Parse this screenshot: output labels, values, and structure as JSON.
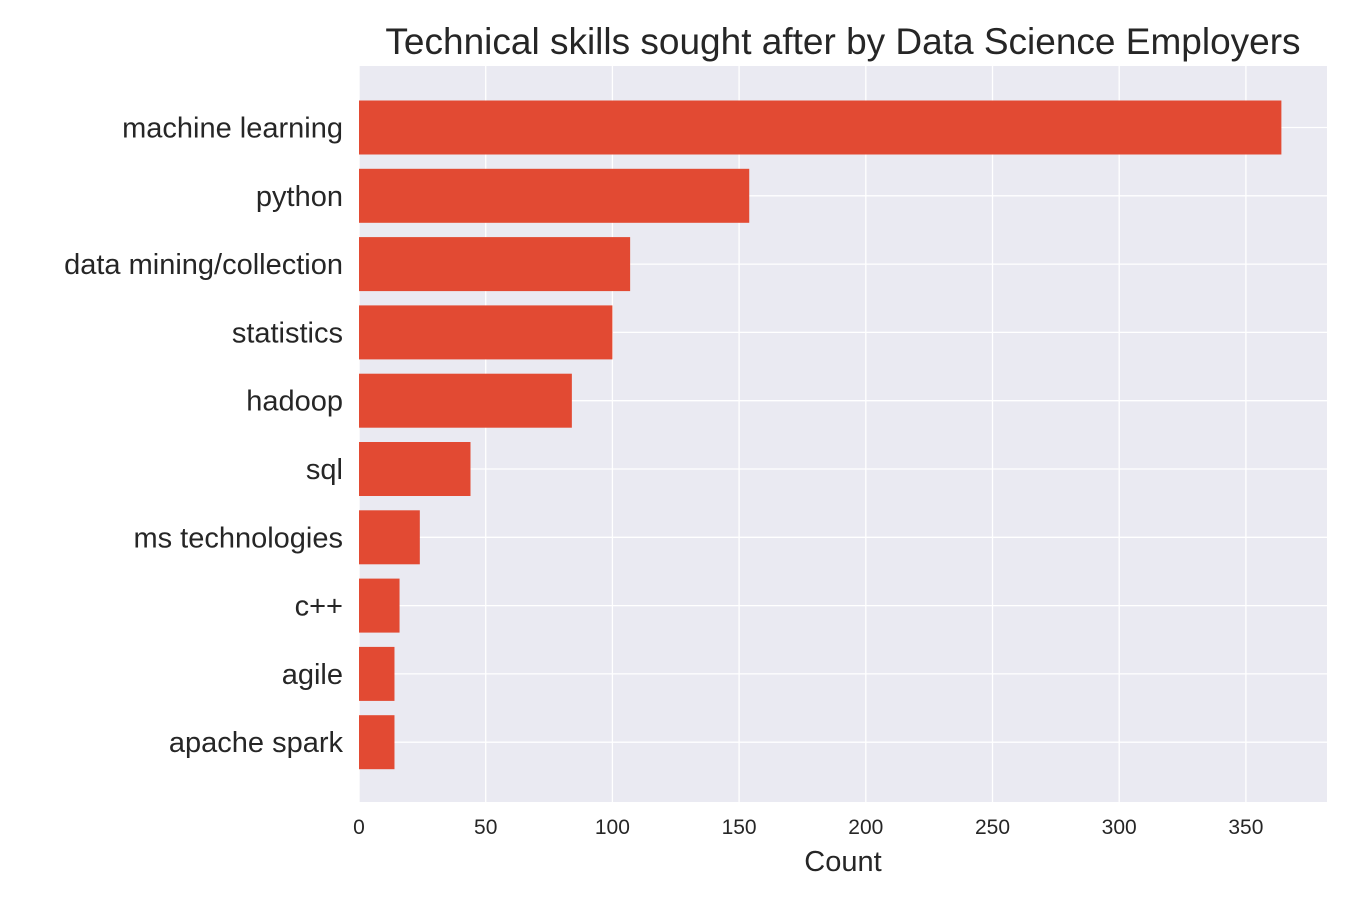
{
  "chart_data": {
    "type": "bar",
    "orientation": "horizontal",
    "title": "Technical skills sought after by Data Science Employers",
    "xlabel": "Count",
    "ylabel": "",
    "categories": [
      "machine learning",
      "python",
      "data mining/collection",
      "statistics",
      "hadoop",
      "sql",
      "ms technologies",
      "c++",
      "agile",
      "apache spark"
    ],
    "values": [
      364,
      154,
      107,
      100,
      84,
      44,
      24,
      16,
      14,
      14
    ],
    "x_ticks": [
      0,
      50,
      100,
      150,
      200,
      250,
      300,
      350
    ],
    "xlim": [
      0,
      382
    ],
    "grid": true,
    "legend": false,
    "colors": {
      "bar": "#E24A33",
      "plot_background": "#EAEAF2",
      "grid": "#FFFFFF",
      "text": "#262626"
    }
  }
}
